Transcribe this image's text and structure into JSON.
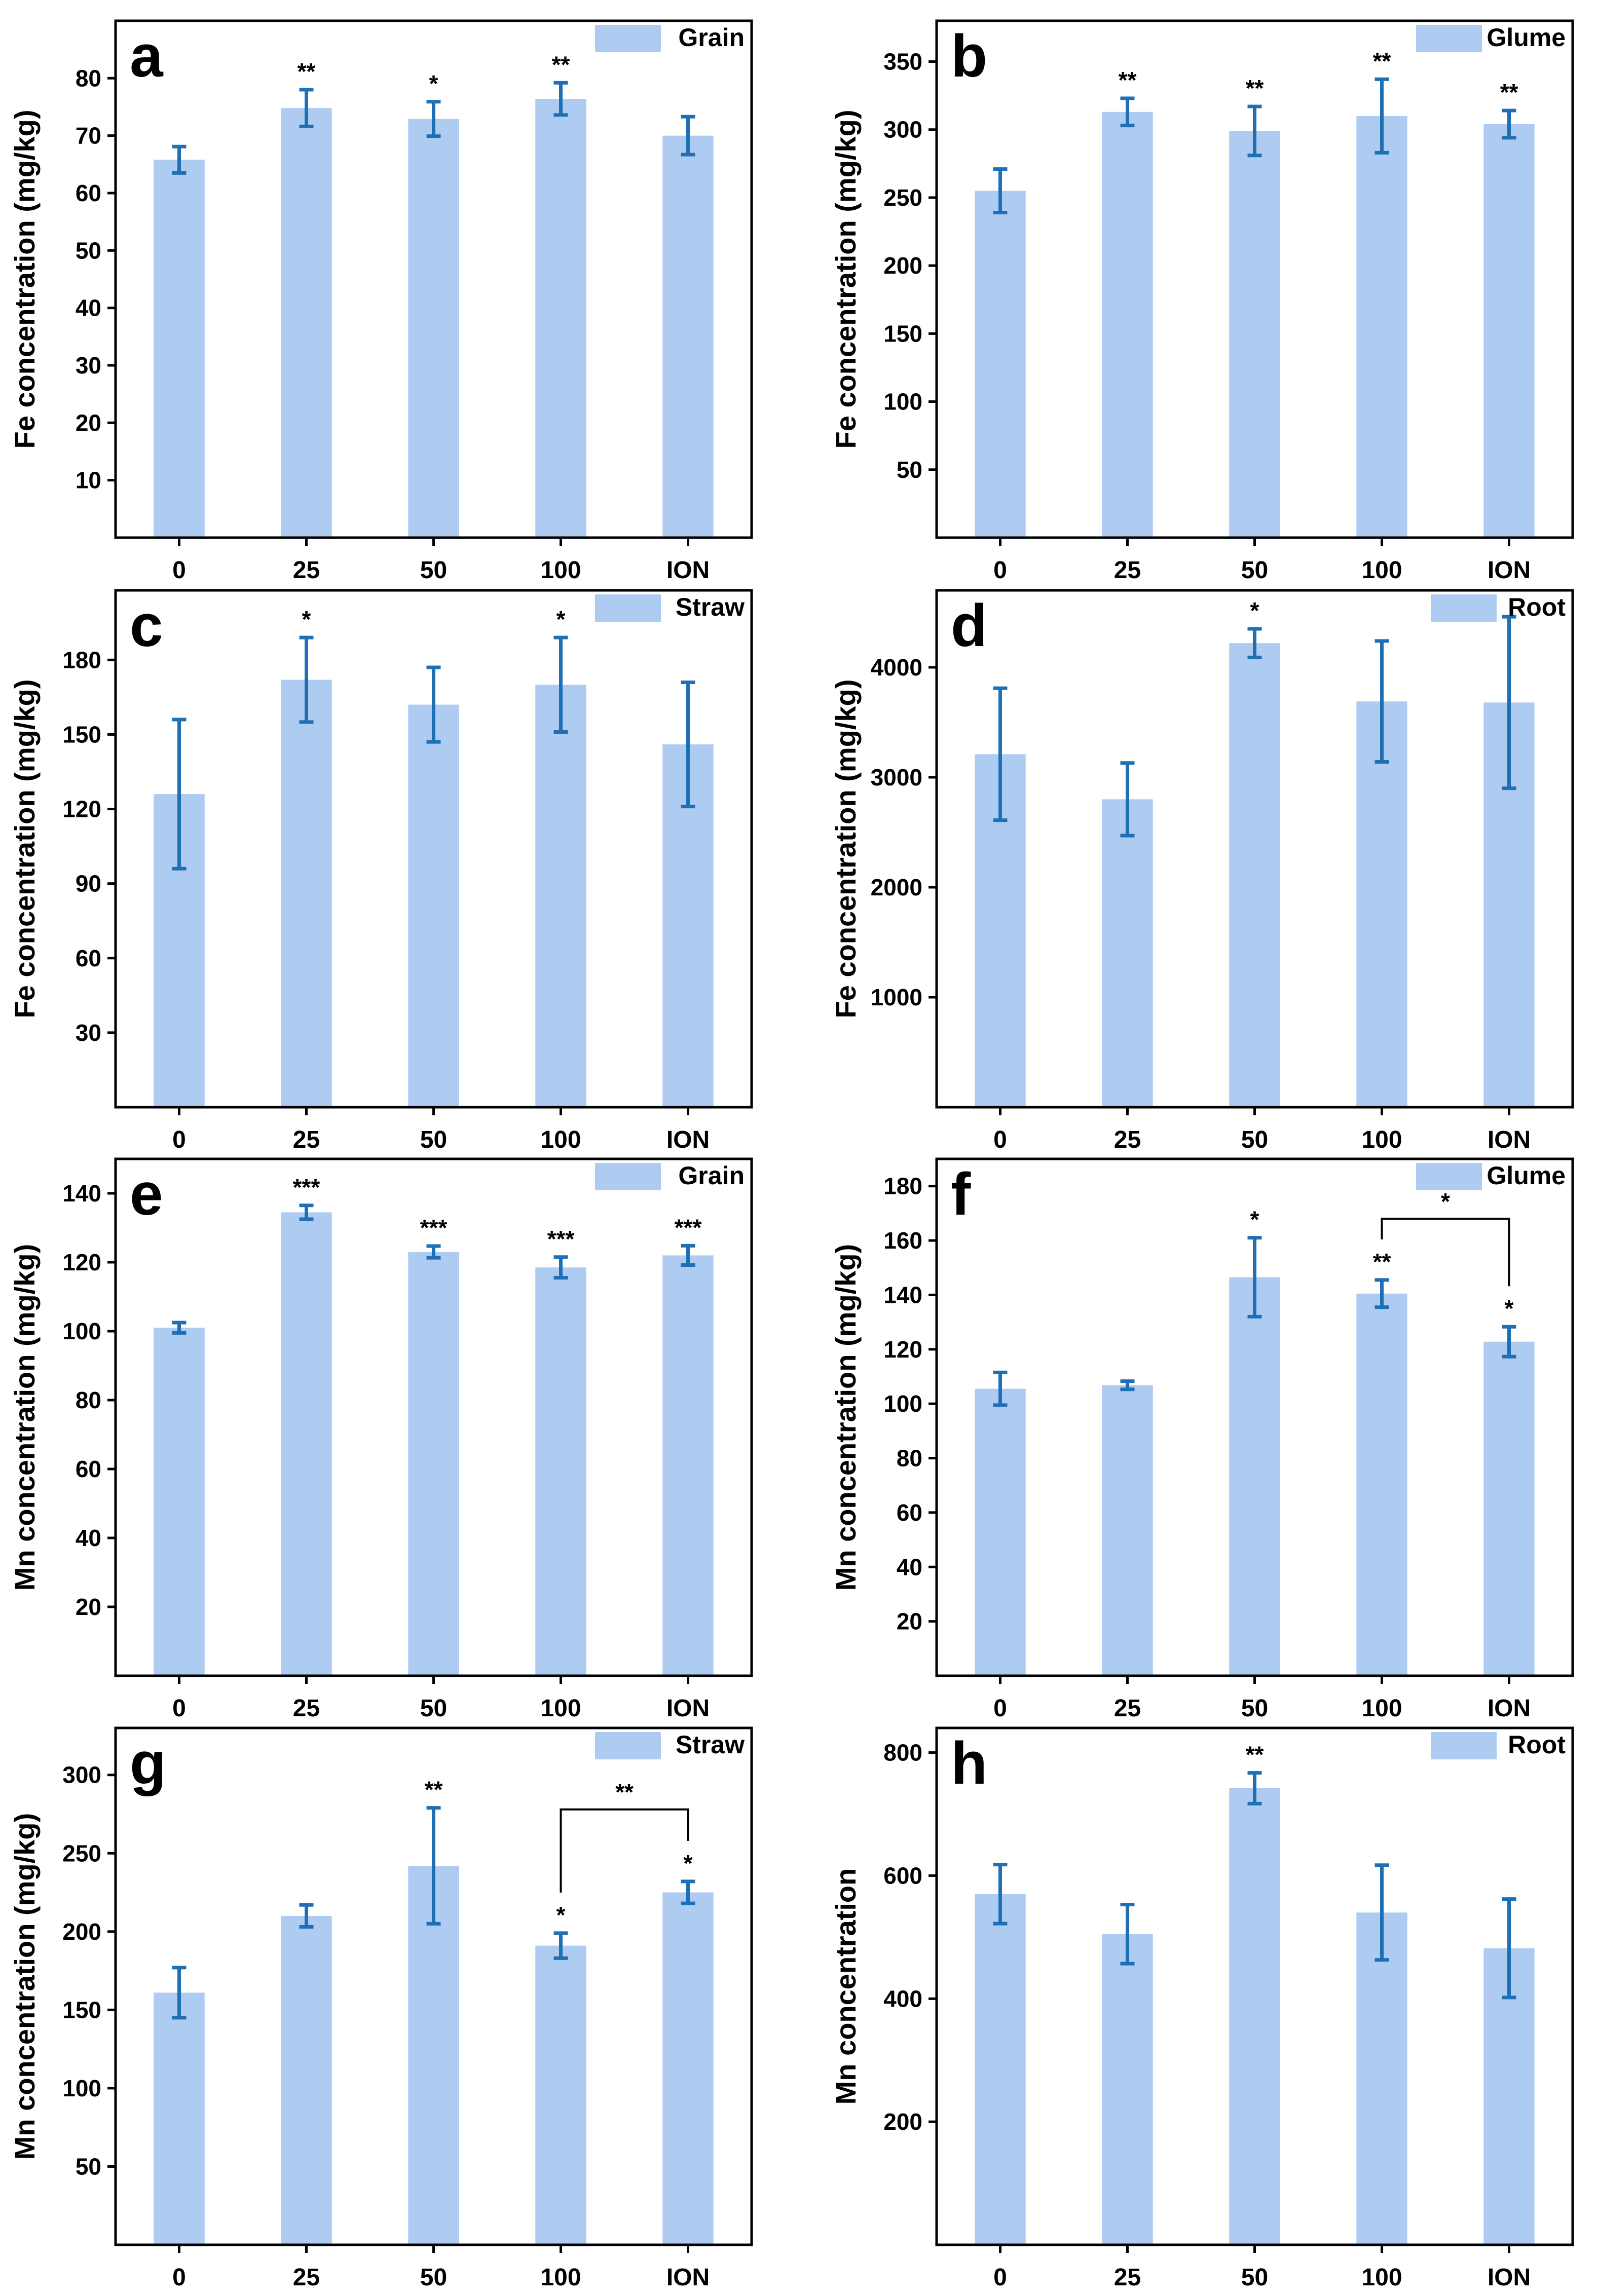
{
  "style": {
    "bar_color": "#aecbf2",
    "error_color": "#1f6fb5",
    "axis_color": "#000000"
  },
  "panels": [
    {
      "letter": "a",
      "legend": "Grain",
      "ylabel": "Fe concentration (mg/kg)"
    },
    {
      "letter": "b",
      "legend": "Glume",
      "ylabel": "Fe concentration (mg/kg)"
    },
    {
      "letter": "c",
      "legend": "Straw",
      "ylabel": "Fe concentration (mg/kg)"
    },
    {
      "letter": "d",
      "legend": "Root",
      "ylabel": "Fe concentration (mg/kg)"
    },
    {
      "letter": "e",
      "legend": "Grain",
      "ylabel": "Mn concentration (mg/kg)"
    },
    {
      "letter": "f",
      "legend": "Glume",
      "ylabel": "Mn concentration (mg/kg)"
    },
    {
      "letter": "g",
      "legend": "Straw",
      "ylabel": "Mn concentration (mg/kg)"
    },
    {
      "letter": "h",
      "legend": "Root",
      "ylabel": "Mn concentration"
    }
  ],
  "chart_data": [
    {
      "type": "bar",
      "categories": [
        "0",
        "25",
        "50",
        "100",
        "ION"
      ],
      "values": [
        65.8,
        74.8,
        72.9,
        76.4,
        70.0
      ],
      "errors": [
        2.3,
        3.2,
        3.0,
        2.8,
        3.3
      ],
      "sig": [
        "",
        "**",
        "*",
        "**",
        ""
      ],
      "ylim": [
        0,
        90
      ],
      "yticks": [
        10,
        20,
        30,
        40,
        50,
        60,
        70,
        80
      ],
      "ylabel": "Fe concentration (mg/kg)",
      "legend": "Grain"
    },
    {
      "type": "bar",
      "categories": [
        "0",
        "25",
        "50",
        "100",
        "ION"
      ],
      "values": [
        255,
        313,
        299,
        310,
        304
      ],
      "errors": [
        16,
        10,
        18,
        27,
        10
      ],
      "sig": [
        "",
        "**",
        "**",
        "**",
        "**"
      ],
      "ylim": [
        0,
        380
      ],
      "yticks": [
        50,
        100,
        150,
        200,
        250,
        300,
        350
      ],
      "ylabel": "Fe concentration (mg/kg)",
      "legend": "Glume"
    },
    {
      "type": "bar",
      "categories": [
        "0",
        "25",
        "50",
        "100",
        "ION"
      ],
      "values": [
        126,
        172,
        162,
        170,
        146
      ],
      "errors": [
        30,
        17,
        15,
        19,
        25
      ],
      "sig": [
        "",
        "*",
        "",
        "*",
        ""
      ],
      "ylim": [
        0,
        208
      ],
      "yticks": [
        30,
        60,
        90,
        120,
        150,
        180
      ],
      "ylabel": "Fe concentration (mg/kg)",
      "legend": "Straw"
    },
    {
      "type": "bar",
      "categories": [
        "0",
        "25",
        "50",
        "100",
        "ION"
      ],
      "values": [
        3210,
        2800,
        4220,
        3690,
        3680
      ],
      "errors": [
        600,
        330,
        130,
        550,
        780
      ],
      "sig": [
        "",
        "",
        "*",
        "",
        ""
      ],
      "ylim": [
        0,
        4700
      ],
      "yticks": [
        1000,
        2000,
        3000,
        4000
      ],
      "ylabel": "Fe concentration (mg/kg)",
      "legend": "Root"
    },
    {
      "type": "bar",
      "categories": [
        "0",
        "25",
        "50",
        "100",
        "ION"
      ],
      "values": [
        101,
        134.5,
        123,
        118.5,
        122
      ],
      "errors": [
        1.5,
        2.0,
        1.7,
        3.0,
        2.8
      ],
      "sig": [
        "",
        "***",
        "***",
        "***",
        "***"
      ],
      "ylim": [
        0,
        150
      ],
      "yticks": [
        20,
        40,
        60,
        80,
        100,
        120,
        140
      ],
      "ylabel": "Mn concentration (mg/kg)",
      "legend": "Grain"
    },
    {
      "type": "bar",
      "categories": [
        "0",
        "25",
        "50",
        "100",
        "ION"
      ],
      "values": [
        105.5,
        106.8,
        146.5,
        140.5,
        122.8
      ],
      "errors": [
        6,
        1.5,
        14.5,
        5,
        5.5
      ],
      "sig": [
        "",
        "",
        "*",
        "**",
        "*"
      ],
      "ylim": [
        0,
        190
      ],
      "yticks": [
        20,
        40,
        60,
        80,
        100,
        120,
        140,
        160,
        180
      ],
      "ylabel": "Mn concentration (mg/kg)",
      "legend": "Glume",
      "bracket": {
        "from": 3,
        "to": 4,
        "label": "*",
        "y": 168
      }
    },
    {
      "type": "bar",
      "categories": [
        "0",
        "25",
        "50",
        "100",
        "ION"
      ],
      "values": [
        161,
        210,
        242,
        191,
        225
      ],
      "errors": [
        16,
        7,
        37,
        8,
        7
      ],
      "sig": [
        "",
        "",
        "**",
        "*",
        "*"
      ],
      "ylim": [
        0,
        330
      ],
      "yticks": [
        50,
        100,
        150,
        200,
        250,
        300
      ],
      "ylabel": "Mn concentration (mg/kg)",
      "legend": "Straw",
      "bracket": {
        "from": 3,
        "to": 4,
        "label": "**",
        "y": 278
      }
    },
    {
      "type": "bar",
      "categories": [
        "0",
        "25",
        "50",
        "100",
        "ION"
      ],
      "values": [
        570,
        505,
        742,
        540,
        482
      ],
      "errors": [
        48,
        48,
        25,
        77,
        80
      ],
      "sig": [
        "",
        "",
        "**",
        "",
        ""
      ],
      "ylim": [
        0,
        840
      ],
      "yticks": [
        200,
        400,
        600,
        800
      ],
      "ylabel": "Mn concentration",
      "legend": "Root"
    }
  ]
}
